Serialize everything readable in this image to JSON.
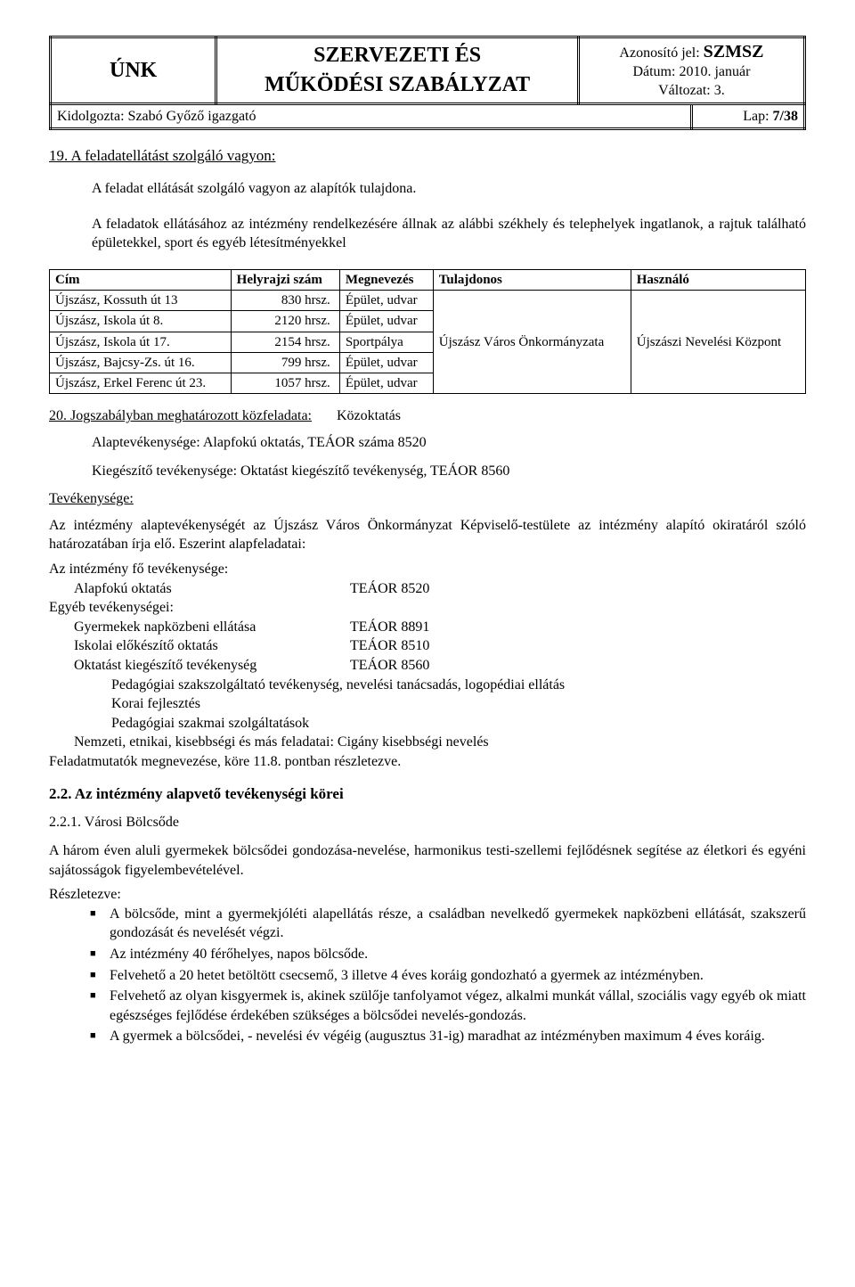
{
  "header": {
    "left": "ÚNK",
    "mid_line1": "SZERVEZETI ÉS",
    "mid_line2": "MŰKÖDÉSI SZABÁLYZAT",
    "id_label": "Azonosító jel:",
    "id_value": "SZMSZ",
    "date": "Dátum: 2010. január",
    "version": "Változat: 3.",
    "kidolgozta": "Kidolgozta: Szabó Győző igazgató",
    "lap": "Lap: 7/38"
  },
  "sec19": {
    "title": "19. A feladatellátást szolgáló vagyon:",
    "p1": "A feladat ellátását szolgáló vagyon az alapítók tulajdona.",
    "p2": "A feladatok ellátásához az intézmény rendelkezésére állnak az alábbi székhely és telephelyek ingatlanok, a rajtuk található épületekkel, sport és egyéb létesítményekkel"
  },
  "table": {
    "columns": [
      "Cím",
      "Helyrajzi szám",
      "Megnevezés",
      "Tulajdonos",
      "Használó"
    ],
    "rows": [
      [
        "Újszász, Kossuth út 13",
        "830 hrsz.",
        "Épület, udvar"
      ],
      [
        "Újszász, Iskola út 8.",
        "2120 hrsz.",
        "Épület, udvar"
      ],
      [
        "Újszász, Iskola út 17.",
        "2154 hrsz.",
        "Sportpálya"
      ],
      [
        "Újszász, Bajcsy-Zs. út 16.",
        "799 hrsz.",
        "Épület, udvar"
      ],
      [
        "Újszász, Erkel Ferenc út 23.",
        "1057 hrsz.",
        "Épület, udvar"
      ]
    ],
    "owner": "Újszász Város Önkormányzata",
    "user": "Újszászi Nevelési Központ"
  },
  "sec20": {
    "title_u": "20. Jogszabályban meghatározott közfeladata:",
    "title_rest": "Közoktatás",
    "line1": "Alaptevékenysége: Alapfokú oktatás, TEÁOR száma 8520",
    "line2": "Kiegészítő tevékenysége: Oktatást kiegészítő tevékenység, TEÁOR 8560",
    "tev": "Tevékenysége:"
  },
  "body": {
    "p1": "Az intézmény alaptevékenységét az Újszász Város Önkormányzat Képviselő-testülete az intézmény alapító okiratáról szóló határozatában írja elő. Eszerint alapfeladatai:",
    "p2": "Az intézmény fő tevékenysége:",
    "act_main": {
      "lbl": "Alapfokú oktatás",
      "code": "TEÁOR 8520"
    },
    "p3": "Egyéb tevékenységei:",
    "acts": [
      {
        "lbl": "Gyermekek napközbeni ellátása",
        "code": "TEÁOR 8891"
      },
      {
        "lbl": "Iskolai előkészítő oktatás",
        "code": "TEÁOR 8510"
      },
      {
        "lbl": "Oktatást kiegészítő tevékenység",
        "code": "TEÁOR 8560"
      }
    ],
    "sub1": "Pedagógiai szakszolgáltató tevékenység, nevelési tanácsadás, logopédiai ellátás",
    "sub2": "Korai fejlesztés",
    "sub3": "Pedagógiai szakmai szolgáltatások",
    "p4": "Nemzeti, etnikai, kisebbségi és más feladatai: Cigány kisebbségi nevelés",
    "p5": "Feladatmutatók megnevezése, köre 11.8. pontban részletezve."
  },
  "s22": {
    "title": "2.2.   Az intézmény alapvető tevékenységi körei",
    "sub": "2.2.1.  Városi Bölcsőde",
    "p1": "A három éven aluli gyermekek bölcsődei gondozása-nevelése, harmonikus testi-szellemi fejlődésnek segítése az életkori és egyéni sajátosságok figyelembevételével.",
    "p2": "Részletezve:",
    "items": [
      "A bölcsőde, mint a gyermekjóléti alapellátás része, a családban nevelkedő gyermekek napközbeni ellátását, szakszerű gondozását és nevelését végzi.",
      "Az intézmény 40 férőhelyes, napos bölcsőde.",
      "Felvehető a 20 hetet betöltött csecsemő, 3 illetve 4 éves koráig gondozható a gyermek az intézményben.",
      "Felvehető az olyan kisgyermek is, akinek szülője tanfolyamot végez, alkalmi munkát vállal, szociális vagy egyéb ok miatt egészséges fejlődése érdekében szükséges a bölcsődei nevelés-gondozás.",
      "A gyermek a bölcsődei, - nevelési év végéig (augusztus 31-ig) maradhat az intézményben maximum 4 éves koráig."
    ]
  }
}
